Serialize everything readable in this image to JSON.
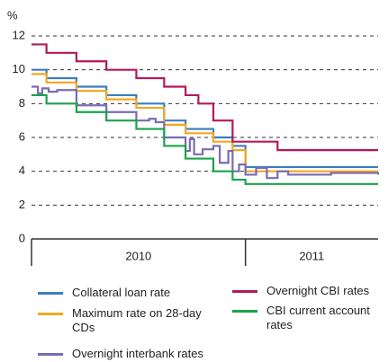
{
  "chart_data": {
    "type": "step_line",
    "y_unit": "%",
    "xlim": [
      2010,
      2011.62
    ],
    "xticks": [
      {
        "value": 2010,
        "label": "2010"
      },
      {
        "value": 2011,
        "label": "2011"
      }
    ],
    "ylim": [
      0,
      12
    ],
    "yticks": [
      0,
      2,
      4,
      6,
      8,
      10,
      12
    ],
    "grid": true,
    "series": [
      {
        "name": "Collateral loan rate",
        "color": "#3a7ebf",
        "x": [
          2010,
          2010.07,
          2010.21,
          2010.35,
          2010.49,
          2010.62,
          2010.72,
          2010.85,
          2010.94,
          2011.0,
          2011.62
        ],
        "values": [
          10,
          9.5,
          9,
          8.5,
          8,
          7,
          6.5,
          6,
          5.5,
          4.25,
          4.25
        ]
      },
      {
        "name": "Maximum rate on 28-day CDs",
        "color": "#f5a623",
        "x": [
          2010,
          2010.07,
          2010.21,
          2010.35,
          2010.49,
          2010.62,
          2010.72,
          2010.85,
          2010.94,
          2011.0,
          2011.62
        ],
        "values": [
          9.75,
          9.25,
          8.75,
          8.25,
          7.75,
          6.75,
          6.25,
          5.75,
          5.25,
          4,
          4
        ]
      },
      {
        "name": "Overnight interbank rates",
        "color": "#7a6bb5",
        "x": [
          2010,
          2010.03,
          2010.05,
          2010.08,
          2010.12,
          2010.21,
          2010.35,
          2010.49,
          2010.55,
          2010.58,
          2010.62,
          2010.72,
          2010.74,
          2010.76,
          2010.8,
          2010.85,
          2010.88,
          2010.92,
          2010.94,
          2010.97,
          2011.0,
          2011.05,
          2011.1,
          2011.15,
          2011.2,
          2011.3,
          2011.4,
          2011.62
        ],
        "values": [
          9,
          8.6,
          8.9,
          8.7,
          8.8,
          7.9,
          7.5,
          7,
          7.1,
          6.9,
          6,
          5.2,
          5.9,
          5,
          5.3,
          5.5,
          4.5,
          5.2,
          4,
          4.4,
          3.8,
          4.2,
          3.6,
          4,
          3.8,
          3.8,
          3.9,
          3.8
        ]
      },
      {
        "name": "Overnight CBI rates",
        "color": "#b5185a",
        "x": [
          2010,
          2010.07,
          2010.21,
          2010.35,
          2010.49,
          2010.62,
          2010.72,
          2010.78,
          2010.85,
          2010.94,
          2011.15,
          2011.62
        ],
        "values": [
          11.5,
          11,
          10.5,
          10,
          9.5,
          9,
          8.5,
          8,
          7,
          5.75,
          5.25,
          5.25
        ]
      },
      {
        "name": "CBI current account rates",
        "color": "#1aa34a",
        "x": [
          2010,
          2010.07,
          2010.21,
          2010.35,
          2010.49,
          2010.62,
          2010.72,
          2010.85,
          2010.94,
          2011.0,
          2011.62
        ],
        "values": [
          8.5,
          8,
          7.5,
          7,
          6.5,
          5.5,
          4.75,
          4,
          3.5,
          3.25,
          3.25
        ]
      }
    ]
  }
}
